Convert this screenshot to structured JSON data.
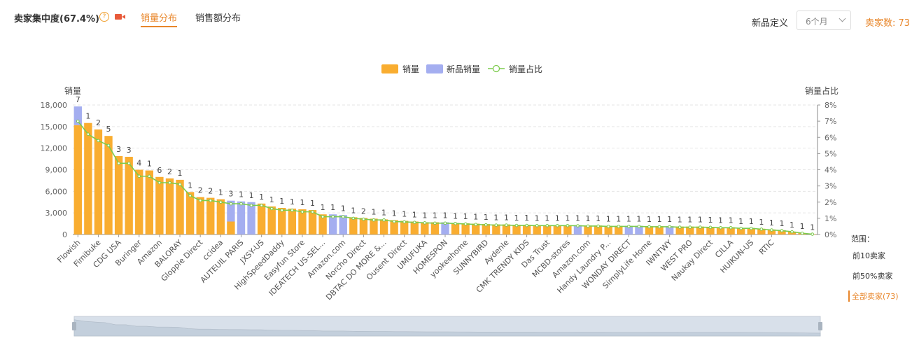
{
  "header": {
    "title": "卖家集中度(67.4%)",
    "help_icon": "question-circle-icon",
    "video_icon": "video-icon",
    "tabs": [
      {
        "label": "销量分布",
        "active": true
      },
      {
        "label": "销售额分布",
        "active": false
      }
    ],
    "new_product_label": "新品定义",
    "new_product_select_value": "6个月",
    "seller_count": "卖家数: 73"
  },
  "colors": {
    "sales_bar": "#F9AD30",
    "new_sales_bar": "#A4AEF0",
    "share_line": "#7CCB4D",
    "accent": "#E8862A"
  },
  "range": {
    "title": "范围：",
    "options": [
      {
        "label": "前10卖家",
        "active": false
      },
      {
        "label": "前50%卖家",
        "active": false
      },
      {
        "label": "全部卖家(73)",
        "active": true
      }
    ]
  },
  "chart_data": {
    "type": "bar",
    "legend": [
      "销量",
      "新品销量",
      "销量占比"
    ],
    "legend_position": "top-center",
    "ylabel_left": "销量",
    "ylabel_right": "销量占比",
    "ylim_left": [
      0,
      18000
    ],
    "yticks_left": [
      "0",
      "3,000",
      "6,000",
      "9,000",
      "12,000",
      "15,000",
      "18,000"
    ],
    "ylim_right": [
      0,
      8
    ],
    "yticks_right": [
      "0%",
      "1%",
      "2%",
      "3%",
      "4%",
      "5%",
      "6%",
      "7%",
      "8%"
    ],
    "grid": true,
    "x_tick_labels": [
      "Flowish",
      "Fimibuke",
      "CDG USA",
      "Buringer",
      "Amazon",
      "BALORAY",
      "Gloppie Direct",
      "ccidea",
      "AUTEUIL PARIS",
      "JXSY-US",
      "HighSpeedDaddy",
      "Easyfun Store",
      "IDEATECH US-SEL...",
      "Amazon.com",
      "Norcho Direct",
      "DBTAC DO MORE &...",
      "Ousent Direct",
      "UMUFUKA",
      "HOMESPON",
      "yookeehome",
      "SUNNYBIRD",
      "Aydenle",
      "CMK TRENDY KIDS",
      "Das Trust",
      "MCBD-stores",
      "Amazon.com",
      "Handy Laundry P...",
      "WONDAY DIRECT",
      "SimplyLife Home",
      "IWNTWY",
      "WEST PRO",
      "Naukay Direct",
      "CILLA",
      "HUIKUN-US",
      "RTIC"
    ],
    "bar_labels": [
      "7",
      "1",
      "2",
      "5",
      "3",
      "3",
      "4",
      "1",
      "6",
      "2",
      "1",
      "1",
      "2",
      "2",
      "1",
      "3",
      "1",
      "1",
      "1",
      "1",
      "1",
      "1",
      "1",
      "1",
      "1",
      "1",
      "1",
      "1",
      "2",
      "1",
      "1",
      "1",
      "1",
      "1",
      "1",
      "1",
      "1",
      "1",
      "1",
      "1",
      "1",
      "1",
      "1",
      "1",
      "1",
      "1",
      "1",
      "1",
      "1",
      "1",
      "1",
      "1",
      "1",
      "1",
      "1",
      "1",
      "1",
      "1",
      "1",
      "1",
      "1",
      "1",
      "1",
      "1",
      "1",
      "1",
      "1",
      "1",
      "1",
      "1",
      "1",
      "1",
      "1"
    ],
    "series": [
      {
        "name": "销量",
        "values": [
          15200,
          15500,
          14600,
          13700,
          10900,
          10800,
          9000,
          8900,
          8000,
          7800,
          7600,
          5900,
          5200,
          5100,
          4900,
          1800,
          0,
          0,
          4300,
          3900,
          3700,
          3600,
          3500,
          3400,
          2800,
          0,
          0,
          2400,
          2300,
          2200,
          2100,
          2000,
          1900,
          1800,
          1700,
          1700,
          0,
          1600,
          1550,
          1500,
          1450,
          1400,
          1400,
          1350,
          1350,
          1300,
          1300,
          1300,
          1300,
          0,
          1250,
          1250,
          1200,
          1200,
          0,
          0,
          1150,
          1150,
          0,
          1100,
          1100,
          1100,
          1050,
          1000,
          1000,
          900,
          900,
          800,
          700,
          600,
          400,
          200,
          50
        ]
      },
      {
        "name": "新品销量",
        "values": [
          2600,
          0,
          0,
          0,
          0,
          0,
          0,
          0,
          0,
          0,
          0,
          0,
          0,
          0,
          0,
          2900,
          4600,
          4500,
          0,
          0,
          0,
          0,
          0,
          0,
          0,
          2800,
          2700,
          0,
          0,
          0,
          0,
          0,
          0,
          0,
          0,
          0,
          1700,
          0,
          0,
          0,
          0,
          0,
          0,
          0,
          0,
          0,
          0,
          0,
          0,
          1300,
          0,
          0,
          0,
          0,
          1200,
          1200,
          0,
          0,
          1150,
          0,
          0,
          0,
          0,
          0,
          0,
          0,
          0,
          0,
          0,
          0,
          0,
          0,
          0
        ]
      },
      {
        "name": "销量占比",
        "values": [
          7.0,
          6.2,
          5.8,
          5.5,
          4.4,
          4.4,
          3.6,
          3.6,
          3.2,
          3.2,
          3.1,
          2.4,
          2.1,
          2.1,
          2.0,
          1.9,
          1.9,
          1.8,
          1.8,
          1.6,
          1.5,
          1.5,
          1.4,
          1.4,
          1.1,
          1.1,
          1.1,
          1.0,
          0.95,
          0.9,
          0.9,
          0.8,
          0.78,
          0.75,
          0.72,
          0.7,
          0.7,
          0.68,
          0.65,
          0.62,
          0.6,
          0.58,
          0.58,
          0.56,
          0.56,
          0.55,
          0.55,
          0.55,
          0.55,
          0.54,
          0.52,
          0.52,
          0.5,
          0.5,
          0.5,
          0.5,
          0.48,
          0.48,
          0.48,
          0.45,
          0.45,
          0.45,
          0.44,
          0.42,
          0.42,
          0.38,
          0.38,
          0.33,
          0.28,
          0.24,
          0.17,
          0.08,
          0.02
        ]
      }
    ]
  },
  "data_zoom": {
    "handle_icon": "drag-handle-icon"
  }
}
